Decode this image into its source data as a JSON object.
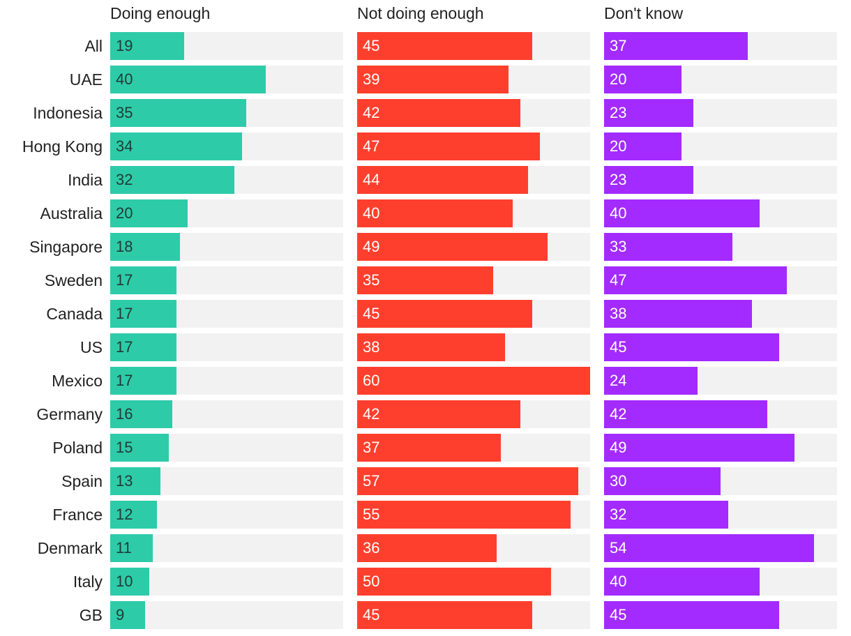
{
  "chart_data": {
    "type": "bar",
    "orientation": "horizontal",
    "layout": "small-multiples",
    "categories": [
      "All",
      "UAE",
      "Indonesia",
      "Hong Kong",
      "India",
      "Australia",
      "Singapore",
      "Sweden",
      "Canada",
      "US",
      "Mexico",
      "Germany",
      "Poland",
      "Spain",
      "France",
      "Denmark",
      "Italy",
      "GB"
    ],
    "xlim": [
      0,
      60
    ],
    "series": [
      {
        "name": "Doing enough",
        "color": "#2ecba9",
        "label_color": "#1f3b35",
        "values": [
          19,
          40,
          35,
          34,
          32,
          20,
          18,
          17,
          17,
          17,
          17,
          16,
          15,
          13,
          12,
          11,
          10,
          9
        ]
      },
      {
        "name": "Not doing enough",
        "color": "#ff3f2d",
        "label_color": "#ffffff",
        "values": [
          45,
          39,
          42,
          47,
          44,
          40,
          49,
          35,
          45,
          38,
          60,
          42,
          37,
          57,
          55,
          36,
          50,
          45
        ]
      },
      {
        "name": "Don't know",
        "color": "#a32bff",
        "label_color": "#ffffff",
        "values": [
          37,
          20,
          23,
          20,
          23,
          40,
          33,
          47,
          38,
          45,
          24,
          42,
          49,
          30,
          32,
          54,
          40,
          45
        ]
      }
    ]
  }
}
